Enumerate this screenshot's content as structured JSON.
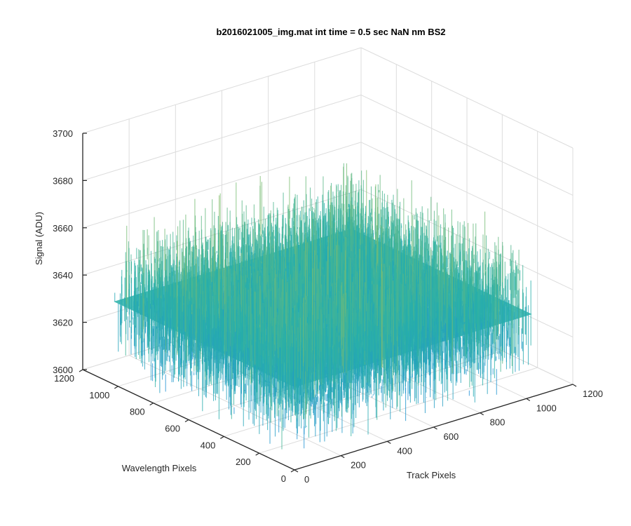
{
  "chart_data": {
    "type": "surface",
    "title": "b2016021005_img.mat int time = 0.5 sec  NaN nm BS2",
    "xlabel": "Track Pixels",
    "ylabel": "Wavelength Pixels",
    "zlabel": "Signal (ADU)",
    "xlim": [
      0,
      1200
    ],
    "ylim": [
      0,
      1200
    ],
    "zlim": [
      3600,
      3700
    ],
    "xticks": [
      "0",
      "200",
      "400",
      "600",
      "800",
      "1000",
      "1200"
    ],
    "yticks": [
      "0",
      "200",
      "400",
      "600",
      "800",
      "1000",
      "1200"
    ],
    "zticks": [
      "3600",
      "3620",
      "3640",
      "3660",
      "3680",
      "3700"
    ],
    "data_extent": {
      "x": [
        0,
        1024
      ],
      "y": [
        0,
        1024
      ]
    },
    "signal_mean": 3635,
    "signal_spread": 8,
    "signal_range": [
      3610,
      3690
    ],
    "colormap": "parula",
    "colors": {
      "low": "#1f8fd8",
      "mid": "#28b0a8",
      "high": "#c8c840"
    },
    "grid": true,
    "box": false
  }
}
